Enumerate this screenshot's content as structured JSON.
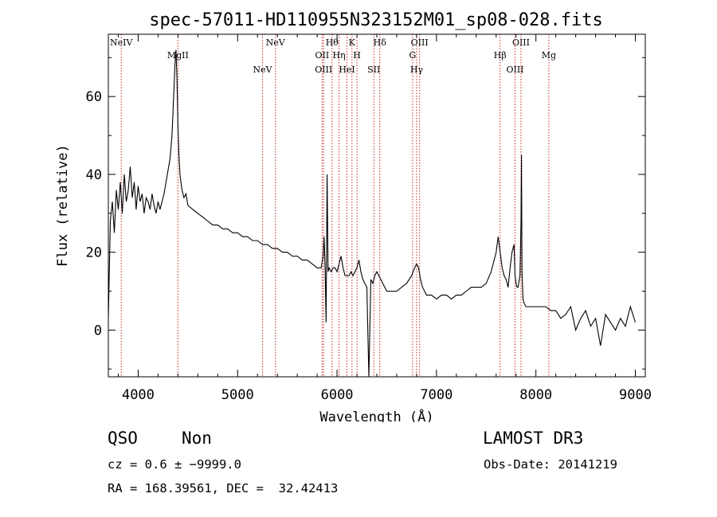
{
  "chart_data": {
    "type": "line",
    "title": "spec-57011-HD110955N323152M01_sp08-028.fits",
    "xlabel": "Wavelength (Å)",
    "ylabel": "Flux (relative)",
    "xlim": [
      3700,
      9100
    ],
    "ylim": [
      -12,
      76
    ],
    "xticks": [
      4000,
      5000,
      6000,
      7000,
      8000,
      9000
    ],
    "yticks": [
      0,
      20,
      40,
      60
    ],
    "series": [
      {
        "name": "spectrum",
        "x": [
          3700,
          3720,
          3740,
          3760,
          3780,
          3800,
          3820,
          3840,
          3860,
          3880,
          3900,
          3920,
          3940,
          3960,
          3980,
          4000,
          4020,
          4040,
          4060,
          4080,
          4100,
          4120,
          4140,
          4160,
          4180,
          4200,
          4220,
          4240,
          4260,
          4280,
          4300,
          4320,
          4340,
          4360,
          4370,
          4380,
          4390,
          4400,
          4410,
          4420,
          4430,
          4440,
          4460,
          4480,
          4500,
          4550,
          4600,
          4650,
          4700,
          4750,
          4800,
          4850,
          4900,
          4950,
          5000,
          5050,
          5100,
          5150,
          5200,
          5250,
          5300,
          5350,
          5400,
          5450,
          5500,
          5550,
          5600,
          5650,
          5700,
          5750,
          5800,
          5840,
          5860,
          5870,
          5880,
          5890,
          5900,
          5910,
          5920,
          5940,
          5960,
          5980,
          6000,
          6020,
          6040,
          6060,
          6080,
          6100,
          6120,
          6140,
          6160,
          6180,
          6200,
          6220,
          6240,
          6260,
          6280,
          6300,
          6320,
          6340,
          6360,
          6380,
          6400,
          6420,
          6440,
          6460,
          6480,
          6500,
          6550,
          6600,
          6650,
          6700,
          6750,
          6780,
          6800,
          6820,
          6840,
          6860,
          6880,
          6900,
          6950,
          7000,
          7050,
          7100,
          7150,
          7200,
          7250,
          7300,
          7350,
          7400,
          7450,
          7500,
          7550,
          7580,
          7600,
          7620,
          7640,
          7660,
          7680,
          7700,
          7720,
          7740,
          7760,
          7780,
          7790,
          7800,
          7810,
          7820,
          7840,
          7850,
          7855,
          7860,
          7870,
          7880,
          7900,
          7950,
          8000,
          8050,
          8100,
          8150,
          8200,
          8250,
          8300,
          8350,
          8400,
          8450,
          8500,
          8550,
          8600,
          8650,
          8700,
          8750,
          8800,
          8850,
          8900,
          8950,
          9000
        ],
        "y": [
          3,
          28,
          33,
          25,
          36,
          31,
          38,
          30,
          40,
          33,
          36,
          42,
          34,
          38,
          31,
          37,
          33,
          35,
          30,
          34,
          33,
          31,
          35,
          32,
          30,
          33,
          31,
          33,
          35,
          38,
          41,
          44,
          50,
          62,
          68,
          72,
          65,
          52,
          45,
          40,
          38,
          36,
          34,
          35,
          32,
          31,
          30,
          29,
          28,
          27,
          27,
          26,
          26,
          25,
          25,
          24,
          24,
          23,
          23,
          22,
          22,
          21,
          21,
          20,
          20,
          19,
          19,
          18,
          18,
          17,
          16,
          16,
          19,
          24,
          16,
          2,
          40,
          15,
          16,
          15,
          16,
          16,
          15,
          17,
          19,
          16,
          14,
          14,
          14,
          15,
          14,
          15,
          16,
          18,
          15,
          13,
          12,
          11,
          -12,
          13,
          12,
          14,
          15,
          14,
          13,
          12,
          11,
          10,
          10,
          10,
          11,
          12,
          14,
          16,
          17,
          16,
          13,
          11,
          10,
          9,
          9,
          8,
          9,
          9,
          8,
          9,
          9,
          10,
          11,
          11,
          11,
          12,
          15,
          18,
          20,
          24,
          20,
          16,
          14,
          13,
          11,
          16,
          20,
          22,
          14,
          12,
          11,
          11,
          14,
          28,
          45,
          15,
          8,
          7,
          6,
          6,
          6,
          6,
          6,
          5,
          5,
          3,
          4,
          6,
          0,
          3,
          5,
          1,
          3,
          -4,
          4,
          2,
          0,
          3,
          1,
          6,
          2
        ]
      }
    ],
    "lines": [
      {
        "name": "NeIV",
        "x": 3830
      },
      {
        "name": "MgII",
        "x": 4400
      },
      {
        "name": "NeV",
        "x": 5250
      },
      {
        "name": "NeV",
        "x": 5380
      },
      {
        "name": "OII",
        "x": 5850
      },
      {
        "name": "OIII",
        "x": 5865
      },
      {
        "name": "Hθ",
        "x": 5950
      },
      {
        "name": "Hη",
        "x": 6020
      },
      {
        "name": "HeI",
        "x": 6100
      },
      {
        "name": "K",
        "x": 6150
      },
      {
        "name": "H",
        "x": 6200
      },
      {
        "name": "SII",
        "x": 6370
      },
      {
        "name": "Hδ",
        "x": 6430
      },
      {
        "name": "G",
        "x": 6760
      },
      {
        "name": "Hγ",
        "x": 6800
      },
      {
        "name": "OIII",
        "x": 6830
      },
      {
        "name": "Hβ",
        "x": 7640
      },
      {
        "name": "OIII",
        "x": 7790
      },
      {
        "name": "OIII",
        "x": 7850
      },
      {
        "name": "Mg",
        "x": 8130
      }
    ]
  },
  "info": {
    "object_class": "QSO",
    "subclass": "Non",
    "survey": "LAMOST DR3",
    "redshift_line": "cz = 0.6 ± −9999.0",
    "obs_date": "Obs-Date: 20141219",
    "coords": "RA = 168.39561, DEC =  32.42413"
  },
  "colors": {
    "spectrum": "#000000",
    "lines": "#c62828",
    "axes": "#000000"
  }
}
